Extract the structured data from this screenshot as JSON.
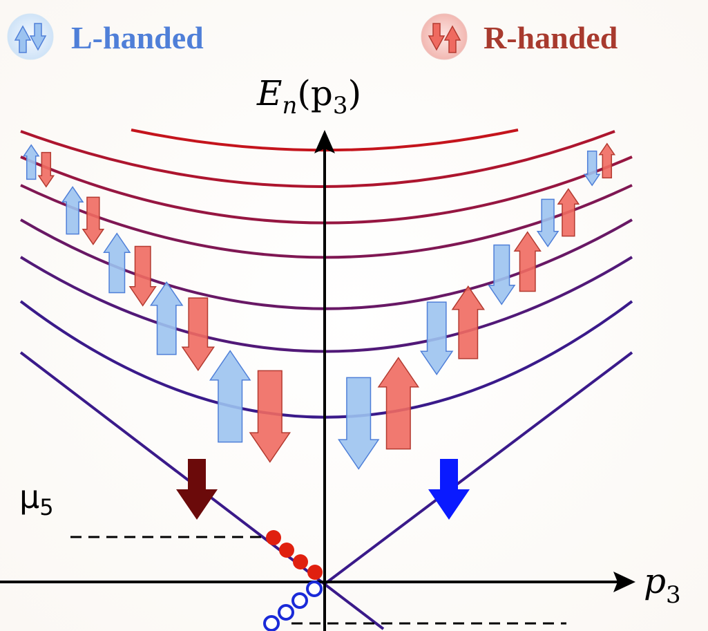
{
  "legend": {
    "left": {
      "label": "L-handed",
      "color": "#4f7fd8"
    },
    "right": {
      "label": "R-handed",
      "color": "#a83a2e"
    }
  },
  "axes": {
    "y_label_main": "E",
    "y_label_sub": "n",
    "y_label_arg": "(p",
    "y_label_arg_sub": "3",
    "y_label_close": ")",
    "x_label_main": "p",
    "x_label_sub": "3"
  },
  "mu": {
    "symbol": "μ",
    "sub": "5"
  },
  "colors": {
    "axis": "#000000",
    "level_low": "#3a1a8a",
    "level_high": "#c4141c",
    "spin_up_blue": "#9cc3f0",
    "spin_down_red": "#ef6a60",
    "left_big_arrow": "#6b0a0a",
    "right_big_arrow": "#0a1aff",
    "filled_dot": "#e0200f",
    "open_dot": "#1a2ad8"
  }
}
